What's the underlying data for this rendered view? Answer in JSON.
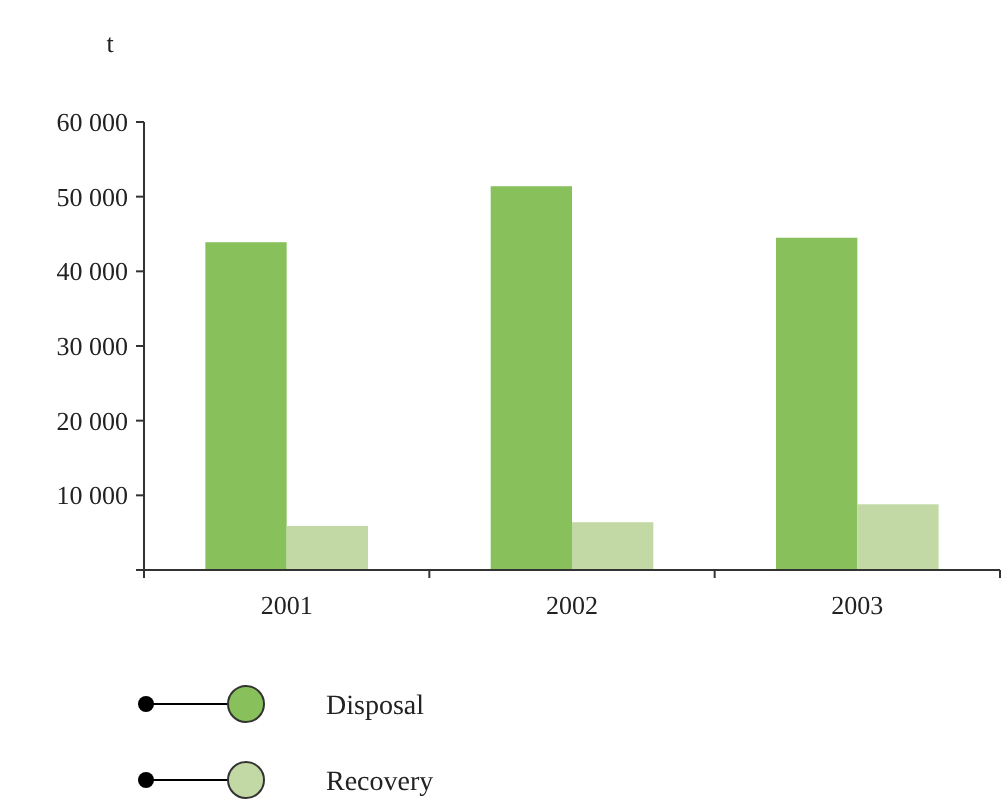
{
  "chart_data": {
    "type": "bar",
    "ylabel": "t",
    "categories": [
      "2001",
      "2002",
      "2003"
    ],
    "series": [
      {
        "name": "Disposal",
        "color": "#88c05c",
        "values": [
          43900,
          51400,
          44500
        ]
      },
      {
        "name": "Recovery",
        "color": "#c3d9a5",
        "values": [
          5900,
          6400,
          8800
        ]
      }
    ],
    "ylim": [
      0,
      60000
    ],
    "yticks": [
      {
        "value": 0,
        "label": null
      },
      {
        "value": 10000,
        "label": "10 000"
      },
      {
        "value": 20000,
        "label": "20 000"
      },
      {
        "value": 30000,
        "label": "30 000"
      },
      {
        "value": 40000,
        "label": "40 000"
      },
      {
        "value": 50000,
        "label": "50 000"
      },
      {
        "value": 60000,
        "label": "60 000"
      }
    ],
    "grid": false,
    "legend": "bottom"
  }
}
